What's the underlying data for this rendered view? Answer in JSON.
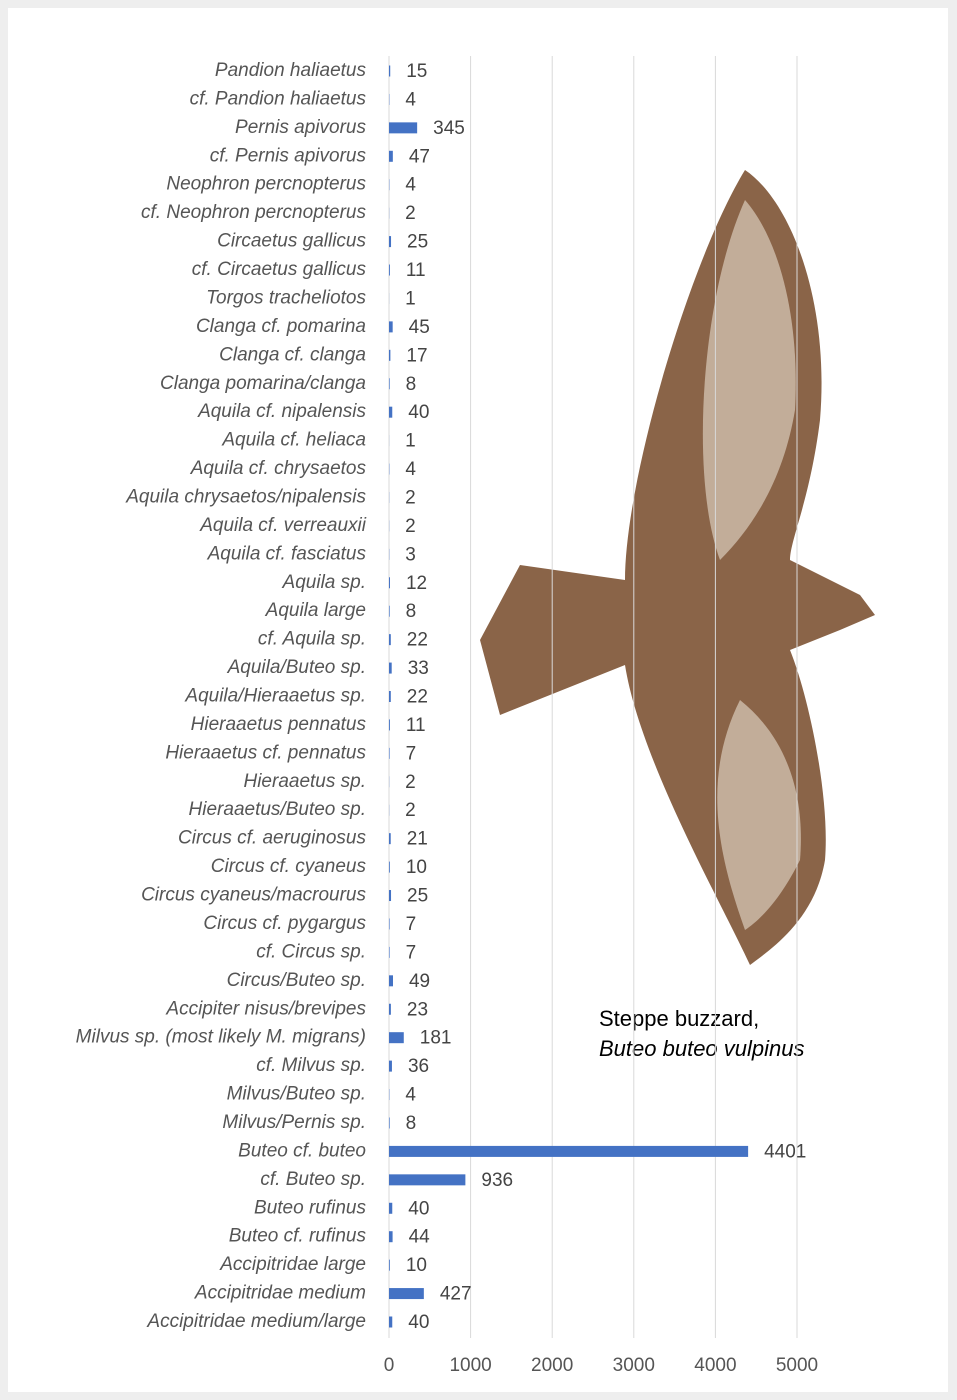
{
  "chart_data": {
    "type": "bar",
    "orientation": "horizontal",
    "categories": [
      "Pandion haliaetus",
      "cf. Pandion haliaetus",
      "Pernis apivorus",
      "cf. Pernis apivorus",
      "Neophron percnopterus",
      "cf. Neophron percnopterus",
      "Circaetus gallicus",
      "cf. Circaetus gallicus",
      "Torgos tracheliotos",
      "Clanga cf. pomarina",
      "Clanga cf. clanga",
      "Clanga pomarina/clanga",
      "Aquila cf. nipalensis",
      "Aquila cf. heliaca",
      "Aquila cf. chrysaetos",
      "Aquila chrysaetos/nipalensis",
      "Aquila cf. verreauxii",
      "Aquila cf. fasciatus",
      "Aquila sp.",
      "Aquila large",
      "cf. Aquila sp.",
      "Aquila/Buteo sp.",
      "Aquila/Hieraaetus sp.",
      "Hieraaetus pennatus",
      "Hieraaetus cf. pennatus",
      "Hieraaetus sp.",
      "Hieraaetus/Buteo sp.",
      "Circus cf. aeruginosus",
      "Circus cf. cyaneus",
      "Circus cyaneus/macrourus",
      "Circus cf. pygargus",
      "cf. Circus sp.",
      "Circus/Buteo sp.",
      "Accipiter nisus/brevipes",
      "Milvus sp. (most likely M. migrans)",
      "cf. Milvus sp.",
      "Milvus/Buteo sp.",
      "Milvus/Pernis sp.",
      "Buteo cf. buteo",
      "cf. Buteo sp.",
      "Buteo rufinus",
      "Buteo cf. rufinus",
      "Accipitridae large",
      "Accipitridae medium",
      "Accipitridae medium/large"
    ],
    "values": [
      15,
      4,
      345,
      47,
      4,
      2,
      25,
      11,
      1,
      45,
      17,
      8,
      40,
      1,
      4,
      2,
      2,
      3,
      12,
      8,
      22,
      33,
      22,
      11,
      7,
      2,
      2,
      21,
      10,
      25,
      7,
      7,
      49,
      23,
      181,
      36,
      4,
      8,
      4401,
      936,
      40,
      44,
      10,
      427,
      40
    ],
    "color": "#4472c4",
    "xlim": [
      0,
      5000
    ],
    "xticks": [
      0,
      1000,
      2000,
      3000,
      4000,
      5000
    ],
    "grid": true,
    "annotation": {
      "line1": "Steppe buzzard,",
      "line2": "Buteo buteo vulpinus"
    }
  }
}
